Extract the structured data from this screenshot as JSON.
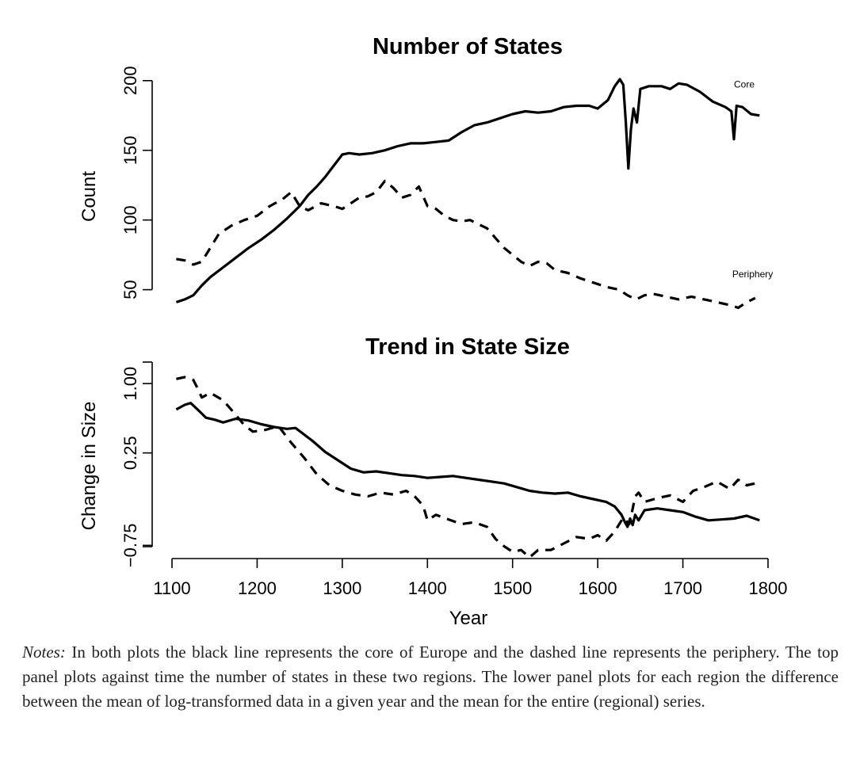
{
  "chart_data": [
    {
      "type": "line",
      "title": "Number of States",
      "xlabel": "",
      "ylabel": "Count",
      "xlim": [
        1100,
        1800
      ],
      "ylim": [
        35,
        205
      ],
      "yticks": [
        50,
        100,
        150,
        200
      ],
      "series": [
        {
          "name": "Core",
          "style": "solid",
          "x": [
            1105,
            1115,
            1125,
            1135,
            1145,
            1160,
            1175,
            1190,
            1205,
            1220,
            1235,
            1250,
            1260,
            1270,
            1280,
            1290,
            1300,
            1308,
            1320,
            1335,
            1350,
            1365,
            1380,
            1395,
            1410,
            1425,
            1440,
            1455,
            1470,
            1485,
            1500,
            1515,
            1530,
            1545,
            1560,
            1575,
            1590,
            1600,
            1612,
            1620,
            1626,
            1630,
            1633,
            1636,
            1639,
            1642,
            1646,
            1650,
            1660,
            1675,
            1685,
            1695,
            1705,
            1720,
            1735,
            1750,
            1757,
            1760,
            1763,
            1770,
            1780,
            1790
          ],
          "y": [
            41,
            43,
            46,
            53,
            59,
            66,
            73,
            80,
            86,
            93,
            101,
            110,
            118,
            124,
            131,
            139,
            147,
            148,
            147,
            148,
            150,
            153,
            155,
            155,
            156,
            157,
            163,
            168,
            170,
            173,
            176,
            178,
            177,
            178,
            181,
            182,
            182,
            180,
            186,
            196,
            201,
            197,
            170,
            137,
            165,
            180,
            170,
            194,
            196,
            196,
            194,
            198,
            197,
            192,
            185,
            181,
            178,
            158,
            182,
            181,
            176,
            175
          ]
        },
        {
          "name": "Periphery",
          "style": "dashed",
          "x": [
            1105,
            1115,
            1125,
            1135,
            1145,
            1155,
            1170,
            1185,
            1200,
            1215,
            1230,
            1240,
            1250,
            1260,
            1275,
            1290,
            1300,
            1310,
            1320,
            1330,
            1340,
            1350,
            1360,
            1370,
            1380,
            1390,
            1400,
            1410,
            1420,
            1430,
            1440,
            1450,
            1460,
            1470,
            1480,
            1490,
            1500,
            1510,
            1520,
            1530,
            1540,
            1550,
            1565,
            1580,
            1595,
            1610,
            1625,
            1635,
            1645,
            1655,
            1665,
            1680,
            1695,
            1710,
            1725,
            1740,
            1755,
            1765,
            1775,
            1785
          ],
          "y": [
            72,
            71,
            68,
            70,
            80,
            90,
            96,
            100,
            103,
            110,
            115,
            120,
            110,
            107,
            112,
            110,
            108,
            112,
            116,
            117,
            120,
            128,
            123,
            116,
            118,
            124,
            110,
            108,
            103,
            100,
            99,
            100,
            97,
            94,
            87,
            80,
            75,
            70,
            67,
            70,
            69,
            64,
            62,
            58,
            55,
            52,
            50,
            46,
            43,
            46,
            47,
            45,
            43,
            45,
            43,
            41,
            39,
            37,
            41,
            44
          ]
        }
      ],
      "annotations": [
        {
          "text": "Core",
          "x": 1760,
          "y": 195
        },
        {
          "text": "Periphery",
          "x": 1758,
          "y": 59
        }
      ]
    },
    {
      "type": "line",
      "title": "Trend in State Size",
      "xlabel": "Year",
      "ylabel": "Change in Size",
      "xlim": [
        1100,
        1800
      ],
      "ylim": [
        -0.85,
        1.25
      ],
      "xticks": [
        1100,
        1200,
        1300,
        1400,
        1500,
        1600,
        1700,
        1800
      ],
      "yticks": [
        -0.75,
        0.25,
        1.0
      ],
      "ytick_labels": [
        "−0.75",
        "0.25",
        "1.00"
      ],
      "series": [
        {
          "name": "Core",
          "style": "solid",
          "x": [
            1105,
            1115,
            1122,
            1130,
            1140,
            1150,
            1160,
            1175,
            1190,
            1205,
            1220,
            1235,
            1245,
            1255,
            1265,
            1280,
            1295,
            1310,
            1325,
            1340,
            1355,
            1370,
            1385,
            1400,
            1415,
            1430,
            1445,
            1460,
            1475,
            1490,
            1505,
            1520,
            1535,
            1550,
            1565,
            1580,
            1595,
            1610,
            1620,
            1628,
            1632,
            1635,
            1638,
            1641,
            1644,
            1648,
            1655,
            1670,
            1685,
            1700,
            1715,
            1730,
            1745,
            1760,
            1775,
            1790
          ],
          "y": [
            0.72,
            0.77,
            0.79,
            0.72,
            0.63,
            0.61,
            0.58,
            0.62,
            0.6,
            0.56,
            0.53,
            0.51,
            0.52,
            0.45,
            0.38,
            0.26,
            0.17,
            0.08,
            0.04,
            0.05,
            0.03,
            0.01,
            0.0,
            -0.02,
            -0.01,
            0.0,
            -0.02,
            -0.04,
            -0.06,
            -0.08,
            -0.12,
            -0.16,
            -0.18,
            -0.19,
            -0.18,
            -0.22,
            -0.25,
            -0.28,
            -0.33,
            -0.42,
            -0.5,
            -0.55,
            -0.46,
            -0.53,
            -0.42,
            -0.48,
            -0.37,
            -0.35,
            -0.37,
            -0.39,
            -0.44,
            -0.48,
            -0.47,
            -0.46,
            -0.43,
            -0.48
          ]
        },
        {
          "name": "Periphery",
          "style": "dashed",
          "x": [
            1105,
            1115,
            1125,
            1130,
            1135,
            1145,
            1160,
            1175,
            1185,
            1195,
            1210,
            1225,
            1240,
            1255,
            1270,
            1285,
            1300,
            1315,
            1330,
            1345,
            1360,
            1375,
            1385,
            1395,
            1400,
            1410,
            1425,
            1440,
            1455,
            1470,
            1480,
            1490,
            1500,
            1510,
            1520,
            1530,
            1545,
            1560,
            1575,
            1590,
            1600,
            1610,
            1620,
            1630,
            1637,
            1640,
            1644,
            1648,
            1655,
            1670,
            1685,
            1700,
            1712,
            1725,
            1740,
            1755,
            1765,
            1775,
            1790
          ],
          "y": [
            1.05,
            1.07,
            1.04,
            0.95,
            0.85,
            0.9,
            0.82,
            0.66,
            0.55,
            0.48,
            0.5,
            0.54,
            0.36,
            0.2,
            0.02,
            -0.1,
            -0.16,
            -0.2,
            -0.22,
            -0.18,
            -0.2,
            -0.16,
            -0.22,
            -0.32,
            -0.48,
            -0.42,
            -0.47,
            -0.52,
            -0.5,
            -0.55,
            -0.68,
            -0.76,
            -0.82,
            -0.8,
            -0.88,
            -0.8,
            -0.8,
            -0.73,
            -0.66,
            -0.68,
            -0.64,
            -0.7,
            -0.6,
            -0.45,
            -0.52,
            -0.4,
            -0.22,
            -0.18,
            -0.28,
            -0.24,
            -0.21,
            -0.28,
            -0.16,
            -0.12,
            -0.06,
            -0.14,
            -0.04,
            -0.1,
            -0.07
          ]
        }
      ]
    }
  ],
  "notes": {
    "label": "Notes:",
    "text": " In both plots the black line represents the core of Europe and the dashed line represents the periphery. The top panel plots against time the number of states in these two regions. The lower panel plots for each region the difference between the mean of log-transformed data in a given year and the mean for the entire (regional) series."
  }
}
